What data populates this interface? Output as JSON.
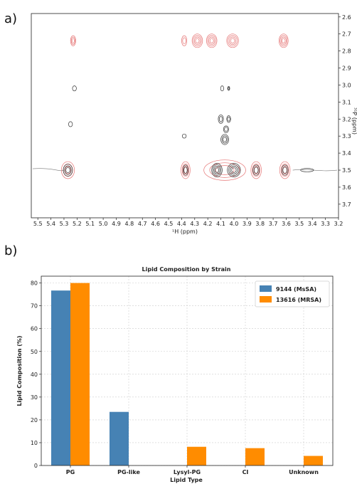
{
  "panel_a_label": "a)",
  "panel_b_label": "b)",
  "chart_data": [
    {
      "type": "scatter",
      "subtype": "2D NMR contour (1H-31P)",
      "xlabel": "¹H (ppm)",
      "ylabel": "³¹P (ppm)",
      "xlim": [
        5.55,
        3.2
      ],
      "ylim": [
        3.78,
        2.58
      ],
      "x_ticks": [
        "5.5",
        "5.4",
        "5.3",
        "5.2",
        "5.1",
        "5.0",
        "4.9",
        "4.8",
        "4.7",
        "4.6",
        "4.5",
        "4.4",
        "4.3",
        "4.2",
        "4.1",
        "4.0",
        "3.9",
        "3.8",
        "3.7",
        "3.6",
        "3.5",
        "3.4",
        "3.3",
        "3.2"
      ],
      "y_ticks": [
        "2.6",
        "2.7",
        "2.8",
        "2.9",
        "3.0",
        "3.1",
        "3.2",
        "3.3",
        "3.4",
        "3.5",
        "3.6",
        "3.7"
      ],
      "colors": {
        "red": "#e57373",
        "black": "#333333"
      },
      "peaks": [
        {
          "x": 5.23,
          "y": 2.74,
          "color": "red",
          "rx": 0.02,
          "ry": 0.03,
          "rings": 3
        },
        {
          "x": 4.38,
          "y": 2.74,
          "color": "red",
          "rx": 0.02,
          "ry": 0.03,
          "rings": 2
        },
        {
          "x": 4.28,
          "y": 2.74,
          "color": "red",
          "rx": 0.04,
          "ry": 0.04,
          "rings": 4
        },
        {
          "x": 4.17,
          "y": 2.74,
          "color": "red",
          "rx": 0.04,
          "ry": 0.04,
          "rings": 4
        },
        {
          "x": 4.01,
          "y": 2.74,
          "color": "red",
          "rx": 0.045,
          "ry": 0.04,
          "rings": 4
        },
        {
          "x": 3.62,
          "y": 2.74,
          "color": "red",
          "rx": 0.035,
          "ry": 0.04,
          "rings": 4
        },
        {
          "x": 5.22,
          "y": 3.02,
          "color": "black",
          "rx": 0.015,
          "ry": 0.015,
          "rings": 1
        },
        {
          "x": 4.09,
          "y": 3.02,
          "color": "black",
          "rx": 0.012,
          "ry": 0.015,
          "rings": 1
        },
        {
          "x": 4.04,
          "y": 3.02,
          "color": "black",
          "rx": 0.008,
          "ry": 0.012,
          "rings": 2
        },
        {
          "x": 5.25,
          "y": 3.23,
          "color": "black",
          "rx": 0.015,
          "ry": 0.015,
          "rings": 1
        },
        {
          "x": 4.1,
          "y": 3.2,
          "color": "black",
          "rx": 0.02,
          "ry": 0.025,
          "rings": 2
        },
        {
          "x": 4.04,
          "y": 3.2,
          "color": "black",
          "rx": 0.015,
          "ry": 0.02,
          "rings": 2
        },
        {
          "x": 4.06,
          "y": 3.26,
          "color": "black",
          "rx": 0.02,
          "ry": 0.02,
          "rings": 2
        },
        {
          "x": 4.07,
          "y": 3.32,
          "color": "black",
          "rx": 0.03,
          "ry": 0.03,
          "rings": 3
        },
        {
          "x": 4.38,
          "y": 3.3,
          "color": "black",
          "rx": 0.015,
          "ry": 0.012,
          "rings": 1
        },
        {
          "x": 5.27,
          "y": 3.5,
          "color": "red",
          "rx": 0.05,
          "ry": 0.05,
          "rings": 3
        },
        {
          "x": 5.27,
          "y": 3.5,
          "color": "black",
          "rx": 0.035,
          "ry": 0.035,
          "rings": 3
        },
        {
          "x": 4.37,
          "y": 3.5,
          "color": "red",
          "rx": 0.035,
          "ry": 0.05,
          "rings": 3
        },
        {
          "x": 4.37,
          "y": 3.5,
          "color": "black",
          "rx": 0.02,
          "ry": 0.03,
          "rings": 2
        },
        {
          "x": 4.07,
          "y": 3.5,
          "color": "red",
          "rx": 0.16,
          "ry": 0.06,
          "rings": 3
        },
        {
          "x": 4.13,
          "y": 3.5,
          "color": "black",
          "rx": 0.04,
          "ry": 0.04,
          "rings": 4
        },
        {
          "x": 4.0,
          "y": 3.5,
          "color": "black",
          "rx": 0.05,
          "ry": 0.04,
          "rings": 4
        },
        {
          "x": 3.83,
          "y": 3.5,
          "color": "red",
          "rx": 0.04,
          "ry": 0.05,
          "rings": 3
        },
        {
          "x": 3.83,
          "y": 3.5,
          "color": "black",
          "rx": 0.025,
          "ry": 0.03,
          "rings": 2
        },
        {
          "x": 3.61,
          "y": 3.5,
          "color": "red",
          "rx": 0.04,
          "ry": 0.05,
          "rings": 3
        },
        {
          "x": 3.61,
          "y": 3.5,
          "color": "black",
          "rx": 0.025,
          "ry": 0.03,
          "rings": 2
        },
        {
          "x": 3.44,
          "y": 3.5,
          "color": "black",
          "rx": 0.05,
          "ry": 0.01,
          "rings": 1
        }
      ]
    },
    {
      "type": "bar",
      "title": "Lipid Composition by Strain",
      "xlabel": "Lipid Type",
      "ylabel": "Lipid Composition (%)",
      "ylim": [
        0,
        83
      ],
      "y_ticks": [
        "0",
        "10",
        "20",
        "30",
        "40",
        "50",
        "60",
        "70",
        "80"
      ],
      "grid": true,
      "legend": "top-right",
      "categories": [
        "PG",
        "PG-like",
        "Lysyl-PG",
        "CI",
        "Unknown"
      ],
      "series": [
        {
          "name": "9144 (MsSA)",
          "color": "#4682b4",
          "values": [
            76.7,
            23.5,
            0,
            0,
            0
          ]
        },
        {
          "name": "13616 (MRSA)",
          "color": "#ff8c00",
          "values": [
            80.0,
            0,
            8.2,
            7.6,
            4.2
          ]
        }
      ]
    }
  ]
}
